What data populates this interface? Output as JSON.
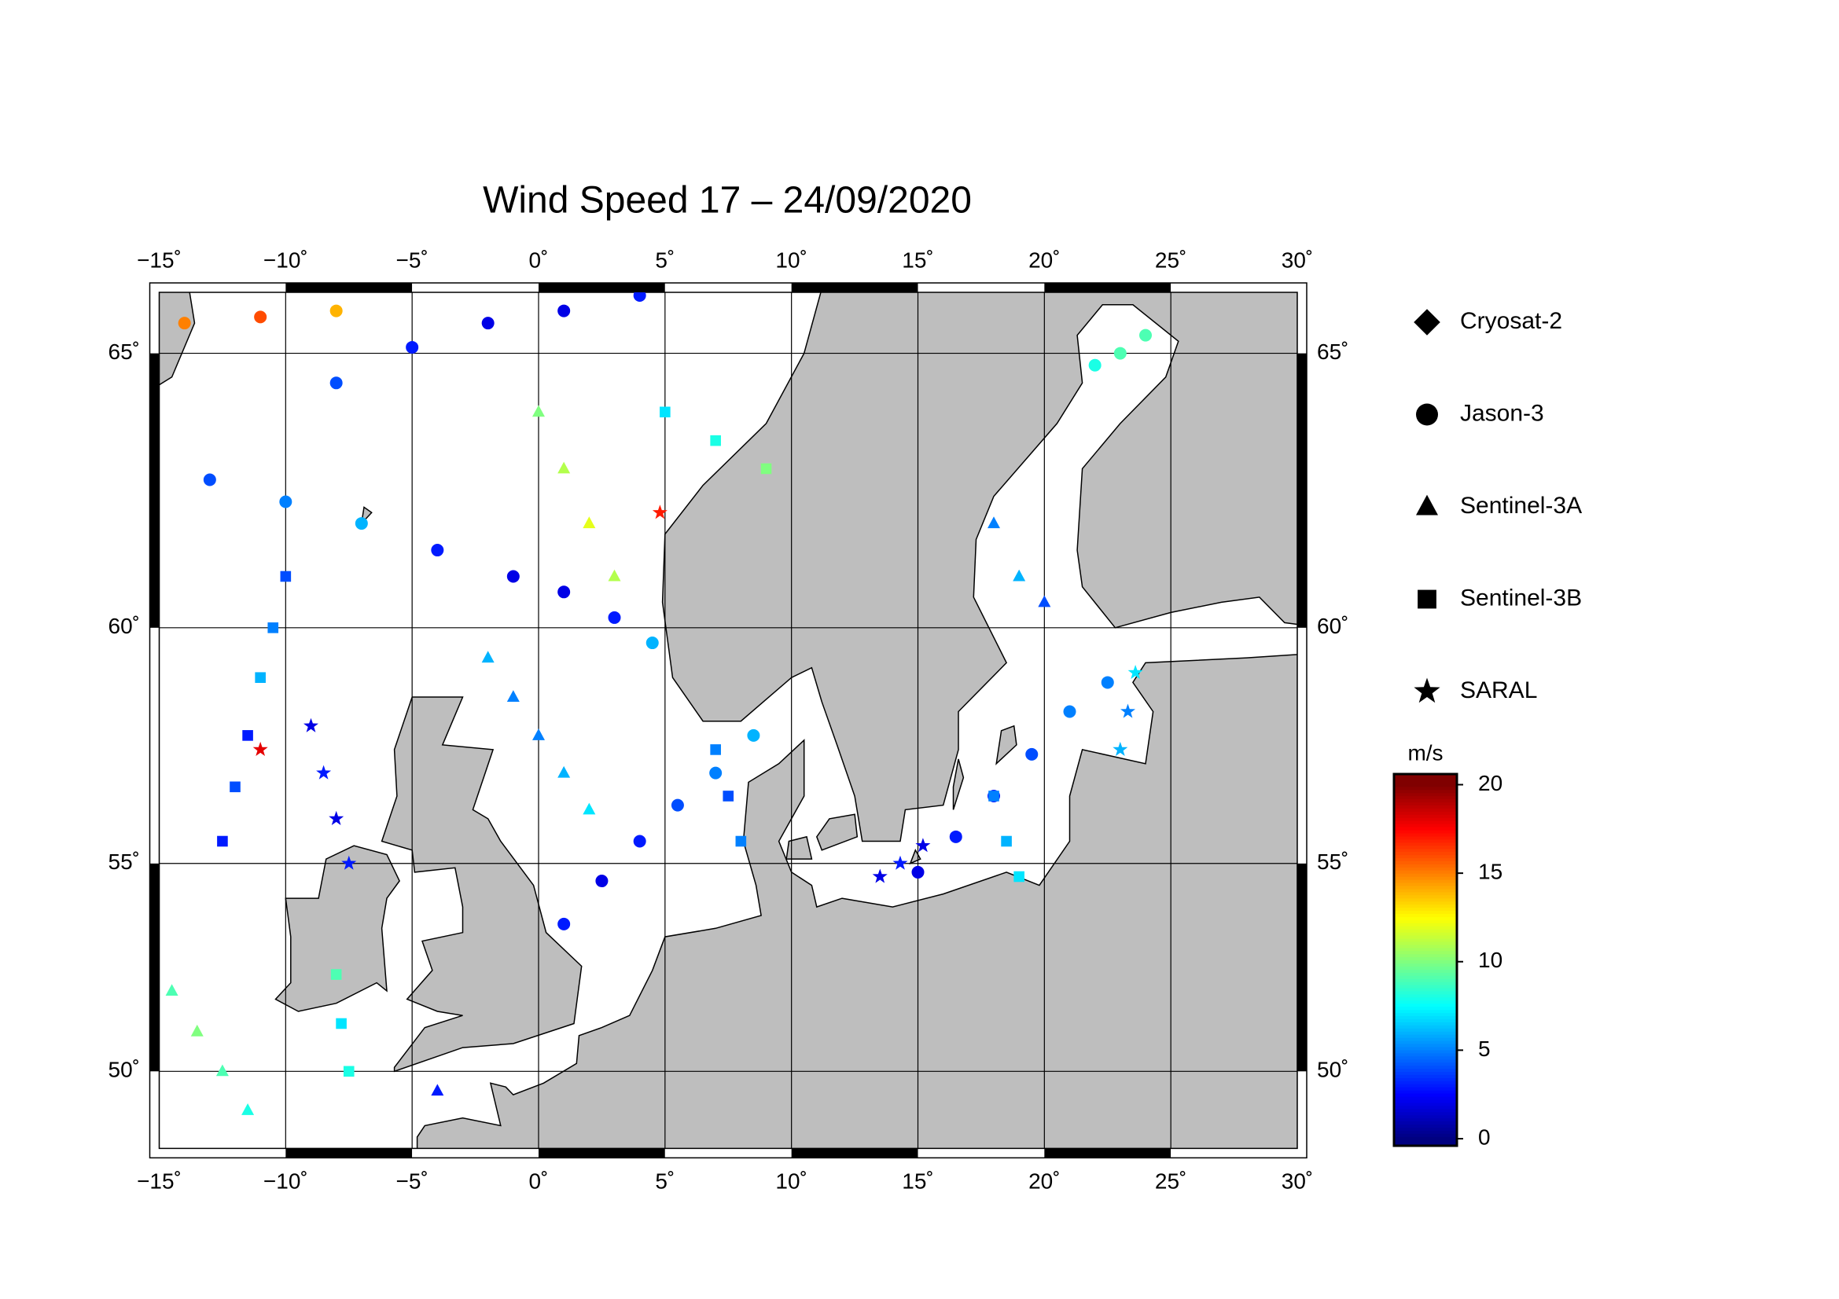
{
  "chart_data": {
    "type": "map",
    "title": "Wind Speed 17 – 24/09/2020",
    "xlim": [
      -15,
      30
    ],
    "ylim": [
      48,
      66
    ],
    "xticks": [
      {
        "value": -15,
        "label": "−15˚"
      },
      {
        "value": -10,
        "label": "−10˚"
      },
      {
        "value": -5,
        "label": "−5˚"
      },
      {
        "value": 0,
        "label": "0˚"
      },
      {
        "value": 5,
        "label": "5˚"
      },
      {
        "value": 10,
        "label": "10˚"
      },
      {
        "value": 15,
        "label": "15˚"
      },
      {
        "value": 20,
        "label": "20˚"
      },
      {
        "value": 25,
        "label": "25˚"
      },
      {
        "value": 30,
        "label": "30˚"
      }
    ],
    "yticks": [
      {
        "value": 50,
        "label": "50˚"
      },
      {
        "value": 55,
        "label": "55˚"
      },
      {
        "value": 60,
        "label": "60˚"
      },
      {
        "value": 65,
        "label": "65˚"
      }
    ],
    "grid": true,
    "colorbar": {
      "label": "m/s",
      "lim": [
        -0.4,
        20.6
      ],
      "ticks": [
        0,
        5,
        10,
        15,
        20
      ],
      "colormap": "jet",
      "clim": [
        0,
        20
      ]
    },
    "series": [
      {
        "name": "Cryosat-2",
        "marker": "diamond",
        "lon": [],
        "lat": [],
        "values": []
      },
      {
        "name": "Jason-3",
        "marker": "circle",
        "lon": [
          -13,
          -10,
          -7,
          -4,
          -1,
          1,
          3,
          4.5,
          -8,
          -5,
          -2,
          1,
          4,
          15,
          16.5,
          18,
          19.5,
          21,
          22.5,
          1,
          2.5,
          4,
          5.5,
          7,
          8.5,
          22,
          23,
          24,
          -14,
          -11,
          -8
        ],
        "lat": [
          62.8,
          62.4,
          62.0,
          61.5,
          61.0,
          60.7,
          60.2,
          59.7,
          64.5,
          65.1,
          65.5,
          65.7,
          65.95,
          54.8,
          55.6,
          56.5,
          57.4,
          58.3,
          58.9,
          53.6,
          54.6,
          55.5,
          56.3,
          57.0,
          57.8,
          64.8,
          65.0,
          65.3,
          65.5,
          65.6,
          65.7
        ],
        "values": [
          4,
          5,
          6,
          3,
          2,
          2,
          3,
          6,
          4,
          3,
          2,
          2,
          3,
          2,
          3,
          3,
          4,
          5,
          5,
          3,
          2,
          3,
          4,
          5,
          6,
          8,
          9,
          9,
          15,
          16,
          14
        ]
      },
      {
        "name": "Sentinel-3A",
        "marker": "triangle",
        "lon": [
          -14.5,
          -13.5,
          -12.5,
          -11.5,
          -2,
          -1,
          0,
          1,
          2,
          0,
          1,
          2,
          3,
          18,
          19,
          20,
          -4
        ],
        "lat": [
          52,
          51,
          50,
          49,
          59.4,
          58.6,
          57.8,
          57,
          56.2,
          64,
          63,
          62,
          61,
          62,
          61,
          60.5,
          49.5
        ],
        "values": [
          9,
          10,
          9,
          8,
          6,
          5,
          5,
          6,
          7,
          10,
          11,
          12,
          11,
          5,
          6,
          4,
          3
        ]
      },
      {
        "name": "Sentinel-3B",
        "marker": "square",
        "lon": [
          -12.5,
          -12,
          -11.5,
          -11,
          -10.5,
          -10,
          -7.5,
          -7.8,
          -8,
          7,
          7.5,
          8,
          19,
          18.5,
          18,
          5,
          7,
          9
        ],
        "lat": [
          55.5,
          56.7,
          57.8,
          59,
          60,
          61,
          50,
          51.2,
          52.4,
          57.5,
          56.5,
          55.5,
          54.7,
          55.5,
          56.5,
          64,
          63.5,
          63
        ],
        "values": [
          3,
          4,
          3,
          6,
          5,
          4,
          8,
          7,
          9,
          5,
          4,
          5,
          7,
          6,
          5,
          7,
          8,
          10
        ]
      },
      {
        "name": "SARAL",
        "marker": "star",
        "lon": [
          -9,
          -8.5,
          -8,
          -7.5,
          13.5,
          14.3,
          15.2,
          23,
          23.3,
          23.6,
          -11,
          4.8
        ],
        "lat": [
          58,
          57,
          56,
          55,
          54.7,
          55,
          55.4,
          57.5,
          58.3,
          59.1,
          57.5,
          62.2
        ],
        "values": [
          2,
          3,
          2,
          3,
          2,
          3,
          2,
          6,
          5,
          7,
          18,
          17
        ]
      }
    ]
  }
}
